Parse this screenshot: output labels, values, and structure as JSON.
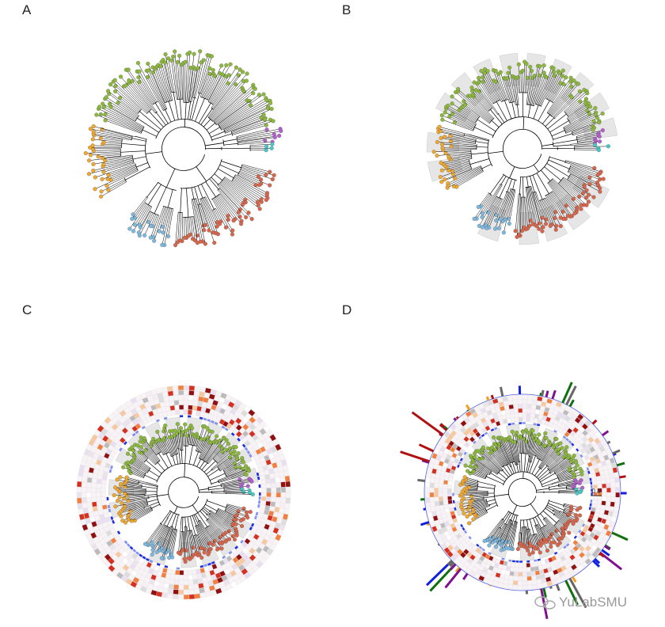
{
  "panels": {
    "a": "A",
    "b": "B",
    "c": "C",
    "d": "D"
  },
  "scale_label": "0.8",
  "watermark": "YuLabSMU"
}
